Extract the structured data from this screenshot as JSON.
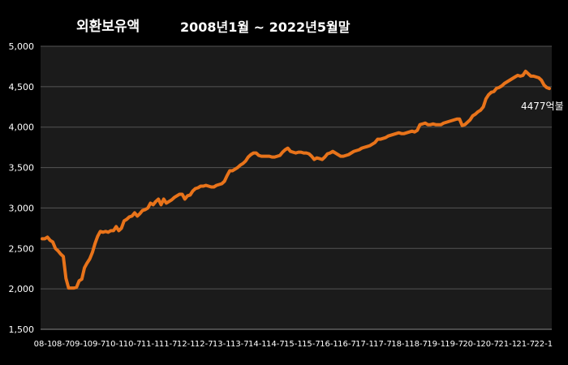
{
  "chart_data": {
    "type": "line",
    "title": "외환보유액",
    "subtitle": "2008년1월 ~ 2022년5월말",
    "xlabel": "",
    "ylabel": "",
    "ylim": [
      1500,
      5000
    ],
    "yticks": [
      "1,500",
      "2,000",
      "2,500",
      "3,000",
      "3,500",
      "4,000",
      "4,500",
      "5,000"
    ],
    "ytick_values": [
      1500,
      2000,
      2500,
      3000,
      3500,
      4000,
      4500,
      5000
    ],
    "xticks": [
      "08-1",
      "08-7",
      "09-1",
      "09-7",
      "10-1",
      "10-7",
      "11-1",
      "11-7",
      "12-1",
      "12-7",
      "13-1",
      "13-7",
      "14-1",
      "14-7",
      "15-1",
      "15-7",
      "16-1",
      "16-7",
      "17-1",
      "17-7",
      "18-1",
      "18-7",
      "19-1",
      "19-7",
      "20-1",
      "20-7",
      "21-1",
      "21-7",
      "22-1"
    ],
    "annotation": "4477억불",
    "grid": true,
    "line_color": "#E8731A",
    "series": [
      {
        "values": [
          2620,
          2620,
          2640,
          2600,
          2580,
          2500,
          2470,
          2430,
          2400,
          2130,
          2010,
          2010,
          2010,
          2020,
          2100,
          2120,
          2260,
          2320,
          2370,
          2450,
          2560,
          2650,
          2710,
          2700,
          2710,
          2700,
          2720,
          2720,
          2770,
          2720,
          2750,
          2840,
          2860,
          2890,
          2900,
          2940,
          2900,
          2930,
          2970,
          2980,
          3000,
          3060,
          3040,
          3080,
          3110,
          3040,
          3110,
          3060,
          3080,
          3100,
          3130,
          3150,
          3170,
          3170,
          3110,
          3150,
          3160,
          3210,
          3240,
          3250,
          3270,
          3270,
          3280,
          3270,
          3260,
          3260,
          3280,
          3290,
          3300,
          3330,
          3400,
          3460,
          3460,
          3480,
          3500,
          3530,
          3550,
          3580,
          3630,
          3660,
          3680,
          3680,
          3650,
          3640,
          3640,
          3640,
          3640,
          3630,
          3630,
          3640,
          3650,
          3690,
          3720,
          3740,
          3700,
          3690,
          3680,
          3690,
          3690,
          3680,
          3680,
          3670,
          3640,
          3600,
          3620,
          3610,
          3600,
          3630,
          3670,
          3680,
          3700,
          3680,
          3660,
          3640,
          3640,
          3650,
          3660,
          3680,
          3700,
          3710,
          3720,
          3740,
          3750,
          3760,
          3770,
          3790,
          3810,
          3850,
          3850,
          3860,
          3870,
          3890,
          3900,
          3910,
          3920,
          3930,
          3920,
          3920,
          3930,
          3940,
          3950,
          3940,
          3960,
          4030,
          4040,
          4050,
          4030,
          4030,
          4040,
          4030,
          4030,
          4030,
          4050,
          4060,
          4070,
          4080,
          4090,
          4100,
          4100,
          4020,
          4030,
          4060,
          4090,
          4140,
          4160,
          4190,
          4210,
          4250,
          4350,
          4400,
          4430,
          4440,
          4480,
          4490,
          4510,
          4540,
          4560,
          4580,
          4600,
          4620,
          4640,
          4630,
          4640,
          4690,
          4660,
          4630,
          4630,
          4620,
          4610,
          4580,
          4520,
          4490,
          4477
        ]
      }
    ]
  }
}
